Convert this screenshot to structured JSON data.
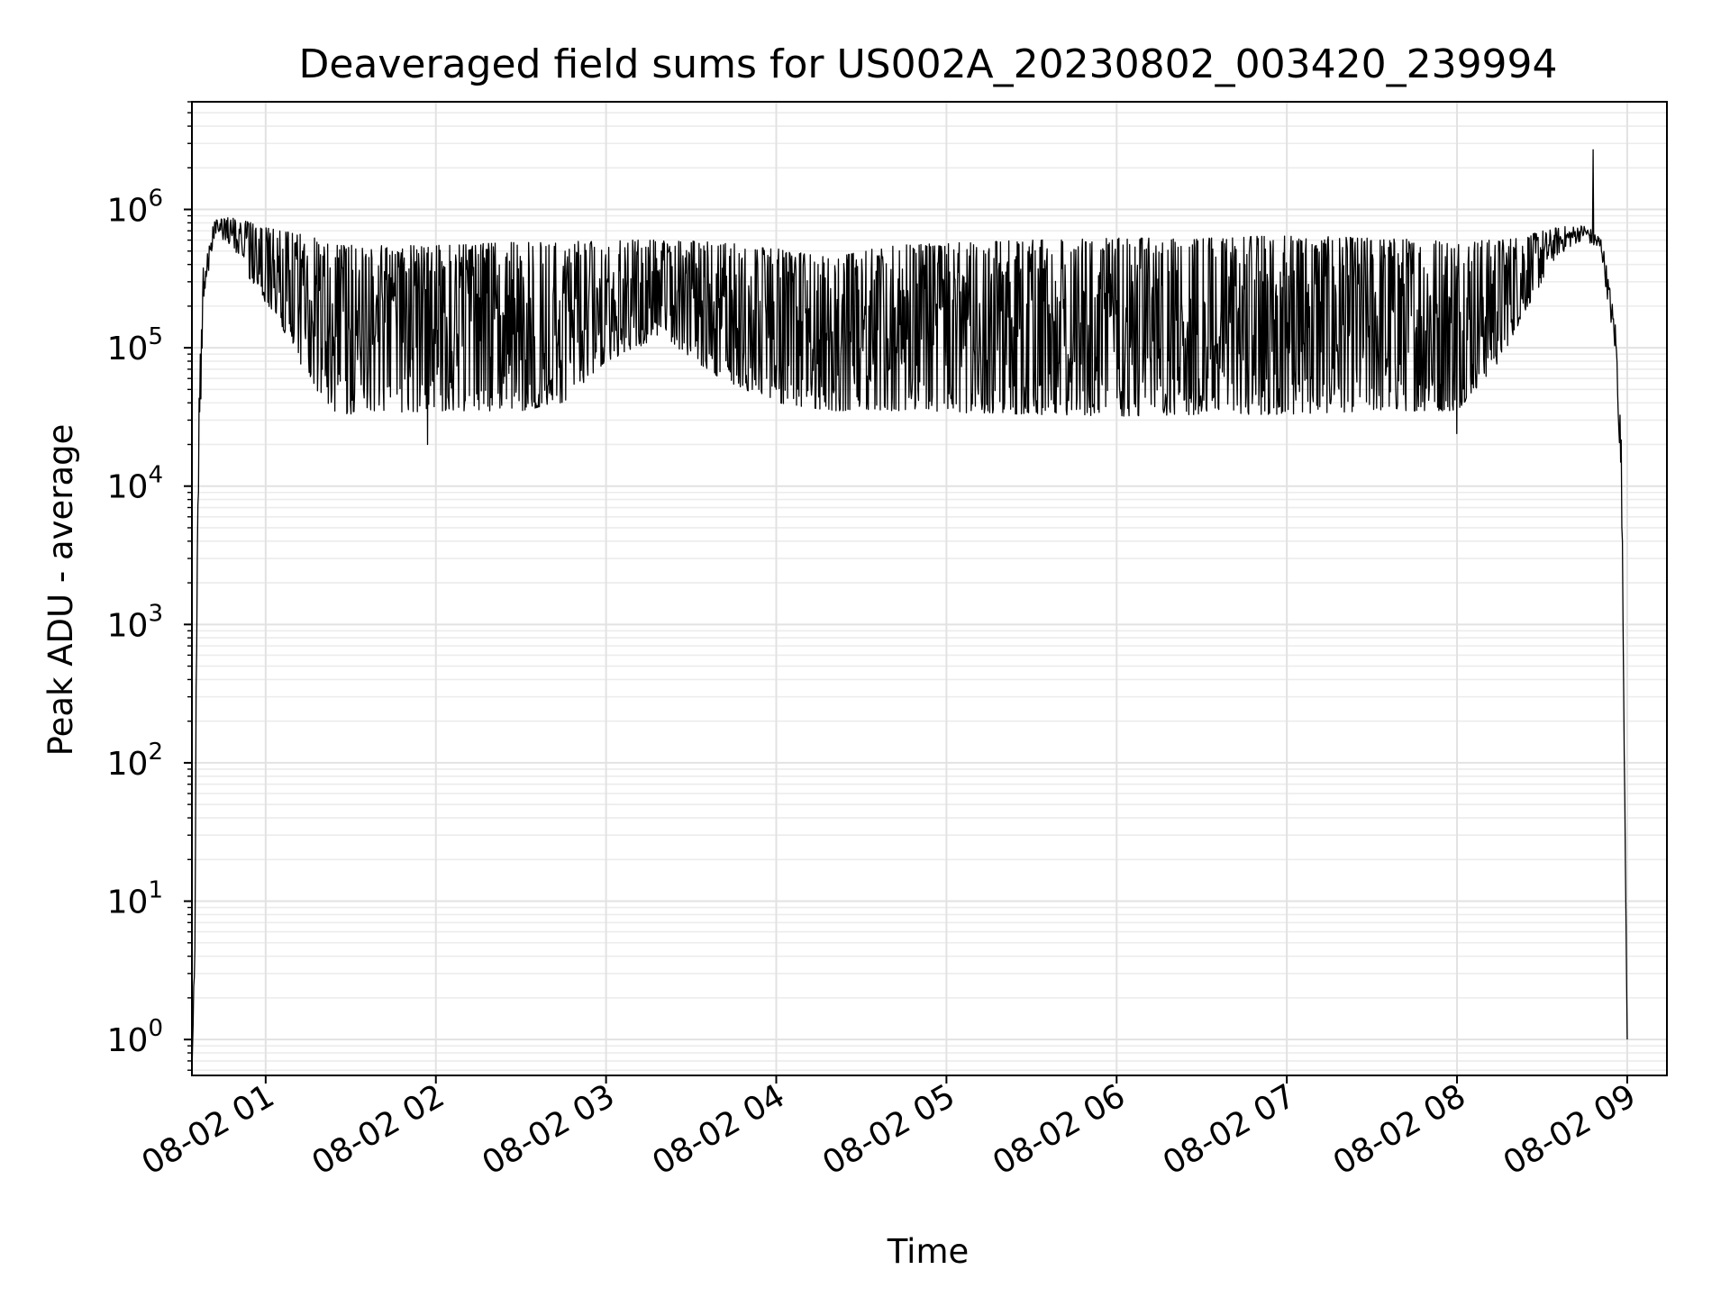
{
  "chart_data": {
    "type": "line",
    "title": "Deaveraged field sums for US002A_20230802_003420_239994",
    "xlabel": "Time",
    "ylabel": "Peak ADU - average",
    "yscale": "log",
    "grid": true,
    "grid_minor": true,
    "line_color": "#000000",
    "xlim": [
      "2023-08-02 00:34",
      "2023-08-02 09:14"
    ],
    "ylim": [
      0.55,
      6000000
    ],
    "x_ticks": [
      {
        "value": "2023-08-02 01:00",
        "label": "08-02 01"
      },
      {
        "value": "2023-08-02 02:00",
        "label": "08-02 02"
      },
      {
        "value": "2023-08-02 03:00",
        "label": "08-02 03"
      },
      {
        "value": "2023-08-02 04:00",
        "label": "08-02 04"
      },
      {
        "value": "2023-08-02 05:00",
        "label": "08-02 05"
      },
      {
        "value": "2023-08-02 06:00",
        "label": "08-02 06"
      },
      {
        "value": "2023-08-02 07:00",
        "label": "08-02 07"
      },
      {
        "value": "2023-08-02 08:00",
        "label": "08-02 08"
      },
      {
        "value": "2023-08-02 09:00",
        "label": "08-02 09"
      }
    ],
    "y_ticks": [
      {
        "value": 1,
        "base": "10",
        "exp": "0"
      },
      {
        "value": 10,
        "base": "10",
        "exp": "1"
      },
      {
        "value": 100,
        "base": "10",
        "exp": "2"
      },
      {
        "value": 1000,
        "base": "10",
        "exp": "3"
      },
      {
        "value": 10000,
        "base": "10",
        "exp": "4"
      },
      {
        "value": 100000,
        "base": "10",
        "exp": "5"
      },
      {
        "value": 1000000,
        "base": "10",
        "exp": "6"
      }
    ],
    "series": [
      {
        "envelope": [
          {
            "x": "2023-08-02 00:34",
            "lo": 0.5,
            "hi": 0.5
          },
          {
            "x": "2023-08-02 00:35",
            "lo": 3,
            "hi": 9
          },
          {
            "x": "2023-08-02 00:36",
            "lo": 5000,
            "hi": 20000
          },
          {
            "x": "2023-08-02 00:38",
            "lo": 200000,
            "hi": 400000
          },
          {
            "x": "2023-08-02 00:42",
            "lo": 650000,
            "hi": 850000
          },
          {
            "x": "2023-08-02 00:48",
            "lo": 550000,
            "hi": 880000
          },
          {
            "x": "2023-08-02 00:55",
            "lo": 300000,
            "hi": 800000
          },
          {
            "x": "2023-08-02 01:05",
            "lo": 150000,
            "hi": 700000
          },
          {
            "x": "2023-08-02 01:15",
            "lo": 60000,
            "hi": 650000
          },
          {
            "x": "2023-08-02 01:25",
            "lo": 32000,
            "hi": 550000
          },
          {
            "x": "2023-08-02 02:00",
            "lo": 35000,
            "hi": 550000
          },
          {
            "x": "2023-08-02 02:30",
            "lo": 35000,
            "hi": 580000
          },
          {
            "x": "2023-08-02 02:45",
            "lo": 40000,
            "hi": 600000
          },
          {
            "x": "2023-08-02 03:00",
            "lo": 80000,
            "hi": 600000
          },
          {
            "x": "2023-08-02 03:20",
            "lo": 120000,
            "hi": 600000
          },
          {
            "x": "2023-08-02 03:40",
            "lo": 60000,
            "hi": 580000
          },
          {
            "x": "2023-08-02 04:00",
            "lo": 40000,
            "hi": 520000
          },
          {
            "x": "2023-08-02 04:20",
            "lo": 35000,
            "hi": 450000
          },
          {
            "x": "2023-08-02 04:40",
            "lo": 35000,
            "hi": 550000
          },
          {
            "x": "2023-08-02 05:30",
            "lo": 33000,
            "hi": 600000
          },
          {
            "x": "2023-08-02 06:00",
            "lo": 32000,
            "hi": 620000
          },
          {
            "x": "2023-08-02 06:30",
            "lo": 33000,
            "hi": 620000
          },
          {
            "x": "2023-08-02 07:00",
            "lo": 33000,
            "hi": 650000
          },
          {
            "x": "2023-08-02 07:30",
            "lo": 35000,
            "hi": 620000
          },
          {
            "x": "2023-08-02 08:00",
            "lo": 35000,
            "hi": 600000
          },
          {
            "x": "2023-08-02 08:15",
            "lo": 80000,
            "hi": 600000
          },
          {
            "x": "2023-08-02 08:25",
            "lo": 200000,
            "hi": 650000
          },
          {
            "x": "2023-08-02 08:35",
            "lo": 450000,
            "hi": 750000
          },
          {
            "x": "2023-08-02 08:45",
            "lo": 620000,
            "hi": 780000
          },
          {
            "x": "2023-08-02 08:51",
            "lo": 450000,
            "hi": 650000
          },
          {
            "x": "2023-08-02 08:56",
            "lo": 80000,
            "hi": 150000
          },
          {
            "x": "2023-08-02 08:58",
            "lo": 8000,
            "hi": 20000
          },
          {
            "x": "2023-08-02 09:00",
            "lo": 1,
            "hi": 1
          }
        ],
        "spikes": [
          {
            "x": "2023-08-02 08:48",
            "y": 2700000
          },
          {
            "x": "2023-08-02 01:57",
            "y": 20000
          },
          {
            "x": "2023-08-02 08:00",
            "y": 24000
          },
          {
            "x": "2023-08-02 00:37",
            "y": 90000
          }
        ]
      }
    ]
  }
}
